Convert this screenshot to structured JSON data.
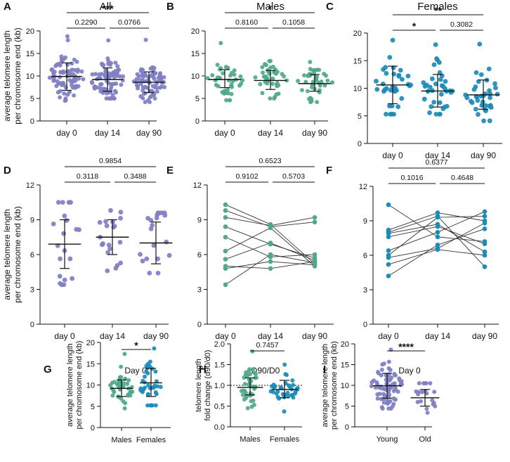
{
  "colors": {
    "all": "#7f7fc2",
    "males": "#4fa98a",
    "females": "#1b8bb7",
    "axis": "#111111"
  },
  "ylabels": {
    "telomere": [
      "average telomere length",
      "per chromosome end (kb)"
    ],
    "fold": [
      "telomere length",
      "fold change (d90/d0)"
    ]
  },
  "chart_data": [
    {
      "id": "A",
      "panel_letter": "A",
      "title": "All",
      "type": "scatter-dot",
      "color": "all",
      "ylabel": "telomere",
      "ylim": [
        0,
        20
      ],
      "yticks": [
        "0",
        "5",
        "10",
        "15",
        "20"
      ],
      "categories": [
        "day 0",
        "day 14",
        "day 90"
      ],
      "summary": [
        {
          "mean": 9.9,
          "sd_low": 6.8,
          "sd_high": 12.9
        },
        {
          "mean": 9.2,
          "sd_low": 6.6,
          "sd_high": 11.8
        },
        {
          "mean": 8.6,
          "sd_low": 6.3,
          "sd_high": 10.9
        }
      ],
      "groups": [
        {
          "n": 80,
          "mean": 9.9,
          "sd": 2.9,
          "min": 4.5,
          "max": 18.8
        },
        {
          "n": 80,
          "mean": 9.2,
          "sd": 2.6,
          "min": 5.0,
          "max": 17.9
        },
        {
          "n": 80,
          "mean": 8.6,
          "sd": 2.3,
          "min": 4.2,
          "max": 18.0
        }
      ],
      "brackets": [
        {
          "from": 0,
          "to": 1,
          "label": "0.2290",
          "level": 0
        },
        {
          "from": 1,
          "to": 2,
          "label": "0.0766",
          "level": 0
        },
        {
          "from": 0,
          "to": 2,
          "label": "***",
          "level": 1
        }
      ]
    },
    {
      "id": "B",
      "panel_letter": "B",
      "title": "Males",
      "type": "scatter-dot",
      "color": "males",
      "ylabel": "telomere",
      "ylim": [
        0,
        20
      ],
      "yticks": [
        "0",
        "5",
        "10",
        "15",
        "20"
      ],
      "categories": [
        "day 0",
        "day 14",
        "day 90"
      ],
      "summary": [
        {
          "mean": 9.2,
          "sd_low": 7.4,
          "sd_high": 11.4
        },
        {
          "mean": 9.0,
          "sd_low": 7.0,
          "sd_high": 11.2
        },
        {
          "mean": 8.3,
          "sd_low": 6.6,
          "sd_high": 10.3
        }
      ],
      "groups": [
        {
          "n": 40,
          "mean": 9.2,
          "sd": 2.0,
          "min": 4.6,
          "max": 17.3
        },
        {
          "n": 40,
          "mean": 9.0,
          "sd": 2.0,
          "min": 5.0,
          "max": 13.3
        },
        {
          "n": 40,
          "mean": 8.3,
          "sd": 1.8,
          "min": 4.2,
          "max": 13.1
        }
      ],
      "brackets": [
        {
          "from": 0,
          "to": 1,
          "label": "0.8160",
          "level": 0
        },
        {
          "from": 1,
          "to": 2,
          "label": "0.1058",
          "level": 0
        },
        {
          "from": 0,
          "to": 2,
          "label": "*",
          "level": 1
        }
      ]
    },
    {
      "id": "C",
      "panel_letter": "C",
      "title": "Females",
      "type": "scatter-dot",
      "color": "females",
      "ylabel": "telomere",
      "ylim": [
        0,
        20
      ],
      "yticks": [
        "0",
        "5",
        "10",
        "15",
        "20"
      ],
      "categories": [
        "day 0",
        "day 14",
        "day 90"
      ],
      "summary": [
        {
          "mean": 10.6,
          "sd_low": 7.2,
          "sd_high": 14.0
        },
        {
          "mean": 9.5,
          "sd_low": 6.6,
          "sd_high": 12.5
        },
        {
          "mean": 8.8,
          "sd_low": 6.2,
          "sd_high": 11.5
        }
      ],
      "groups": [
        {
          "n": 36,
          "mean": 10.6,
          "sd": 3.2,
          "min": 5.3,
          "max": 18.7
        },
        {
          "n": 36,
          "mean": 9.5,
          "sd": 2.8,
          "min": 5.3,
          "max": 17.9
        },
        {
          "n": 36,
          "mean": 8.8,
          "sd": 2.6,
          "min": 4.1,
          "max": 18.0
        }
      ],
      "brackets": [
        {
          "from": 0,
          "to": 1,
          "label": "*",
          "level": 0
        },
        {
          "from": 1,
          "to": 2,
          "label": "0.3082",
          "level": 0
        },
        {
          "from": 0,
          "to": 2,
          "label": "**",
          "level": 1
        }
      ]
    },
    {
      "id": "D",
      "panel_letter": "D",
      "title": "",
      "type": "scatter-dot",
      "color": "all",
      "ylabel": "telomere",
      "ylim": [
        0,
        12
      ],
      "yticks": [
        "0",
        "3",
        "6",
        "9",
        "12"
      ],
      "categories": [
        "day 0",
        "day 14",
        "day 90"
      ],
      "summary": [
        {
          "mean": 6.9,
          "sd_low": 4.8,
          "sd_high": 9.0
        },
        {
          "mean": 7.5,
          "sd_low": 6.0,
          "sd_high": 9.0
        },
        {
          "mean": 7.0,
          "sd_low": 5.2,
          "sd_high": 8.8
        }
      ],
      "groups": [
        {
          "n": 20,
          "mean": 6.9,
          "sd": 2.1,
          "min": 3.4,
          "max": 10.5
        },
        {
          "n": 20,
          "mean": 7.5,
          "sd": 1.5,
          "min": 4.6,
          "max": 9.8
        },
        {
          "n": 20,
          "mean": 7.0,
          "sd": 1.8,
          "min": 4.4,
          "max": 9.6
        }
      ],
      "brackets": [
        {
          "from": 0,
          "to": 1,
          "label": "0.3118",
          "level": 0
        },
        {
          "from": 1,
          "to": 2,
          "label": "0.3488",
          "level": 0
        },
        {
          "from": 0,
          "to": 2,
          "label": "0.9854",
          "level": 1
        }
      ]
    },
    {
      "id": "E",
      "panel_letter": "E",
      "title": "",
      "type": "paired-line",
      "color": "males",
      "ylabel": "telomere",
      "ylim": [
        0,
        12
      ],
      "yticks": [
        "0",
        "3",
        "6",
        "9",
        "12"
      ],
      "categories": [
        "day 0",
        "day 14",
        "day 90"
      ],
      "series": [
        [
          10.3,
          8.6,
          5.2
        ],
        [
          9.8,
          8.4,
          8.8
        ],
        [
          9.2,
          8.5,
          9.2
        ],
        [
          8.4,
          6.9,
          5.7
        ],
        [
          7.5,
          5.8,
          6.0
        ],
        [
          6.3,
          8.3,
          5.0
        ],
        [
          5.0,
          4.8,
          5.4
        ],
        [
          4.8,
          5.4,
          5.1
        ],
        [
          3.4,
          6.0,
          5.3
        ],
        [
          5.6,
          7.0,
          5.5
        ]
      ],
      "brackets": [
        {
          "from": 0,
          "to": 1,
          "label": "0.9102",
          "level": 0
        },
        {
          "from": 1,
          "to": 2,
          "label": "0.5703",
          "level": 0
        },
        {
          "from": 0,
          "to": 2,
          "label": "0.6523",
          "level": 1
        }
      ]
    },
    {
      "id": "F",
      "panel_letter": "F",
      "title": "",
      "type": "paired-line",
      "color": "females",
      "ylabel": "telomere",
      "ylim": [
        0,
        12
      ],
      "yticks": [
        "0",
        "3",
        "6",
        "9",
        "12"
      ],
      "categories": [
        "day 0",
        "day 14",
        "day 90"
      ],
      "series": [
        [
          10.4,
          7.6,
          7.2
        ],
        [
          8.2,
          9.7,
          9.0
        ],
        [
          8.0,
          9.4,
          5.0
        ],
        [
          7.9,
          8.7,
          6.3
        ],
        [
          6.4,
          8.0,
          9.8
        ],
        [
          6.0,
          9.3,
          9.4
        ],
        [
          5.8,
          6.6,
          8.8
        ],
        [
          5.2,
          6.5,
          6.0
        ],
        [
          4.2,
          6.9,
          8.3
        ],
        [
          7.6,
          8.5,
          7.0
        ]
      ],
      "brackets": [
        {
          "from": 0,
          "to": 1,
          "label": "0.1016",
          "level": 0
        },
        {
          "from": 1,
          "to": 2,
          "label": "0.4648",
          "level": 0
        },
        {
          "from": 0,
          "to": 2,
          "label": "0.6377",
          "level": 1
        }
      ]
    },
    {
      "id": "G",
      "panel_letter": "G",
      "title": "Day 0",
      "type": "scatter-dot",
      "ylabel": "telomere",
      "ylim": [
        0,
        20
      ],
      "yticks": [
        "0",
        "5",
        "10",
        "15",
        "20"
      ],
      "categories": [
        "Males",
        "Females"
      ],
      "group_colors": [
        "males",
        "females"
      ],
      "summary": [
        {
          "mean": 9.2,
          "sd_low": 7.3,
          "sd_high": 11.2
        },
        {
          "mean": 10.5,
          "sd_low": 7.3,
          "sd_high": 13.9
        }
      ],
      "groups": [
        {
          "n": 40,
          "mean": 9.2,
          "sd": 2.0,
          "min": 4.5,
          "max": 17.3
        },
        {
          "n": 36,
          "mean": 10.5,
          "sd": 3.2,
          "min": 5.2,
          "max": 18.6
        }
      ],
      "brackets": [
        {
          "from": 0,
          "to": 1,
          "label": "*",
          "level": 0
        }
      ]
    },
    {
      "id": "H",
      "panel_letter": "H",
      "title": "D90/D0",
      "type": "scatter-dot",
      "ylabel": "fold",
      "ylim": [
        0,
        2.0
      ],
      "yticks": [
        "0.0",
        "0.5",
        "1.0",
        "1.5",
        "2.0"
      ],
      "ref_line": 1.0,
      "categories": [
        "Males",
        "Females"
      ],
      "group_colors": [
        "males",
        "females"
      ],
      "summary": [
        {
          "mean": 0.95,
          "sd_low": 0.77,
          "sd_high": 1.18
        },
        {
          "mean": 0.9,
          "sd_low": 0.7,
          "sd_high": 1.12
        }
      ],
      "groups": [
        {
          "n": 40,
          "mean": 0.95,
          "sd": 0.2,
          "min": 0.45,
          "max": 1.82
        },
        {
          "n": 36,
          "mean": 0.9,
          "sd": 0.2,
          "min": 0.37,
          "max": 1.5
        }
      ],
      "brackets": [
        {
          "from": 0,
          "to": 1,
          "label": "0.7457",
          "level": 0
        }
      ]
    },
    {
      "id": "I",
      "panel_letter": "I",
      "title": "Day 0",
      "type": "scatter-dot",
      "ylabel": "telomere",
      "ylim": [
        0,
        20
      ],
      "yticks": [
        "0",
        "5",
        "10",
        "15",
        "20"
      ],
      "categories": [
        "Young",
        "Old"
      ],
      "group_colors": [
        "all",
        "all"
      ],
      "summary": [
        {
          "mean": 9.9,
          "sd_low": 6.9,
          "sd_high": 12.9
        },
        {
          "mean": 7.0,
          "sd_low": 5.0,
          "sd_high": 9.0
        }
      ],
      "groups": [
        {
          "n": 76,
          "mean": 9.9,
          "sd": 3.0,
          "min": 4.4,
          "max": 18.6
        },
        {
          "n": 20,
          "mean": 7.0,
          "sd": 2.0,
          "min": 3.4,
          "max": 10.5
        }
      ],
      "brackets": [
        {
          "from": 0,
          "to": 1,
          "label": "****",
          "level": 0
        }
      ]
    }
  ]
}
